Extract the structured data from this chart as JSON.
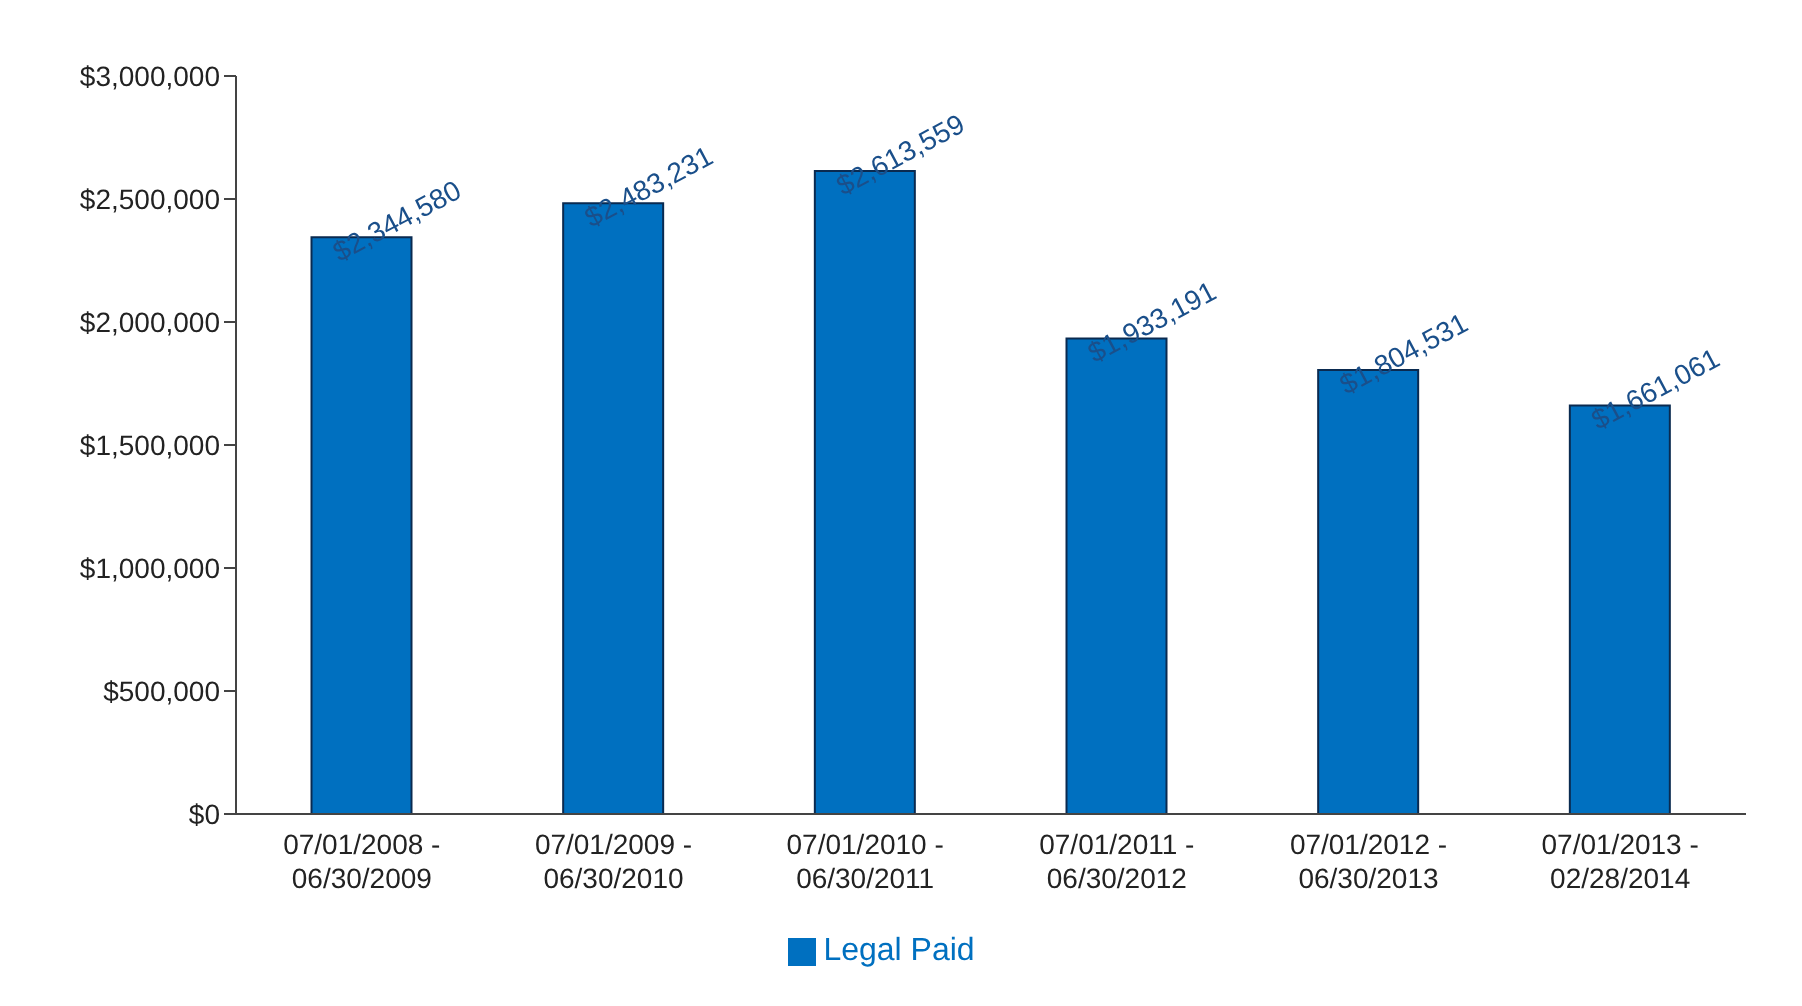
{
  "chart_data": {
    "type": "bar",
    "categories": [
      "07/01/2008 - 06/30/2009",
      "07/01/2009 - 06/30/2010",
      "07/01/2010 - 06/30/2011",
      "07/01/2011 - 06/30/2012",
      "07/01/2012 - 06/30/2013",
      "07/01/2013 - 02/28/2014"
    ],
    "series": [
      {
        "name": "Legal Paid",
        "color": "#0070c0",
        "values": [
          2344580,
          2483231,
          2613559,
          1933191,
          1804531,
          1661061
        ],
        "value_labels": [
          "$2,344,580",
          "$2,483,231",
          "$2,613,559",
          "$1,933,191",
          "$1,804,531",
          "$1,661,061"
        ]
      }
    ],
    "ylim": [
      0,
      3000000
    ],
    "yticks": [
      {
        "value": 0,
        "label": "$0"
      },
      {
        "value": 500000,
        "label": "$500,000"
      },
      {
        "value": 1000000,
        "label": "$1,000,000"
      },
      {
        "value": 1500000,
        "label": "$1,500,000"
      },
      {
        "value": 2000000,
        "label": "$2,000,000"
      },
      {
        "value": 2500000,
        "label": "$2,500,000"
      },
      {
        "value": 3000000,
        "label": "$3,000,000"
      }
    ],
    "grid": false,
    "legend": "bottom"
  }
}
